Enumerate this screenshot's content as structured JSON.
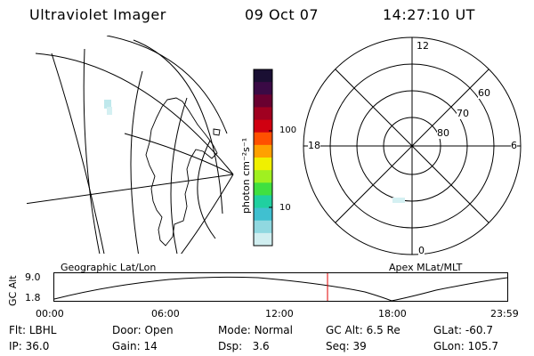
{
  "header": {
    "title": "Ultraviolet Imager",
    "date": "09 Oct 07",
    "time": "14:27:10 UT"
  },
  "colorbar": {
    "unit_label": "photon cm⁻²s⁻¹",
    "tick_labels": [
      "100",
      "10"
    ],
    "colors": [
      "#1a0f33",
      "#3a0a45",
      "#6a0030",
      "#a00020",
      "#d00010",
      "#ff5000",
      "#ffa000",
      "#f0f000",
      "#a0f020",
      "#40e040",
      "#20d0a0",
      "#40c0d0",
      "#90d8e0",
      "#d0eef0"
    ]
  },
  "polar_plot": {
    "labels": {
      "top": "12",
      "bottom": "0",
      "left": "18",
      "right": "6"
    },
    "ring_labels": [
      "60",
      "70",
      "80"
    ]
  },
  "timeline": {
    "left_label": "Geographic Lat/Lon",
    "right_label": "Apex MLat/MLT",
    "axis_label": "GC Alt",
    "y_ticks": [
      "9.0",
      "1.8"
    ],
    "x_ticks": [
      "00:00",
      "06:00",
      "12:00",
      "18:00",
      "23:59"
    ],
    "marker_color": "#e00000"
  },
  "status": {
    "row1": [
      {
        "label": "Flt:",
        "value": "LBHL"
      },
      {
        "label": "Door:",
        "value": "Open"
      },
      {
        "label": "Mode:",
        "value": "Normal"
      },
      {
        "label": "GC Alt:",
        "value": "6.5 Re"
      },
      {
        "label": "GLat:",
        "value": "-60.7"
      }
    ],
    "row2": [
      {
        "label": "IP:",
        "value": "36.0"
      },
      {
        "label": "Gain:",
        "value": "14"
      },
      {
        "label": "Dsp:",
        "value": "3.6"
      },
      {
        "label": "Seq:",
        "value": "39"
      },
      {
        "label": "GLon:",
        "value": "105.7"
      }
    ]
  }
}
